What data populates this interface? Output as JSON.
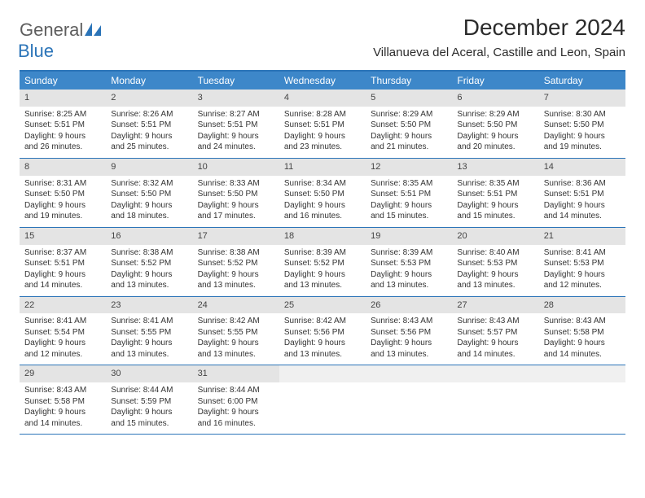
{
  "logo": {
    "general": "General",
    "blue": "Blue"
  },
  "title": "December 2024",
  "location": "Villanueva del Aceral, Castille and Leon, Spain",
  "colors": {
    "header_bg": "#3d87c9",
    "border": "#2b74b8",
    "daynum_bg": "#e4e4e4",
    "text": "#333333",
    "logo_gray": "#5e5e5e",
    "logo_blue": "#2b74b8"
  },
  "weekdays": [
    "Sunday",
    "Monday",
    "Tuesday",
    "Wednesday",
    "Thursday",
    "Friday",
    "Saturday"
  ],
  "weeks": [
    [
      {
        "n": "1",
        "sr": "8:25 AM",
        "ss": "5:51 PM",
        "d1": "9 hours",
        "d2": "and 26 minutes."
      },
      {
        "n": "2",
        "sr": "8:26 AM",
        "ss": "5:51 PM",
        "d1": "9 hours",
        "d2": "and 25 minutes."
      },
      {
        "n": "3",
        "sr": "8:27 AM",
        "ss": "5:51 PM",
        "d1": "9 hours",
        "d2": "and 24 minutes."
      },
      {
        "n": "4",
        "sr": "8:28 AM",
        "ss": "5:51 PM",
        "d1": "9 hours",
        "d2": "and 23 minutes."
      },
      {
        "n": "5",
        "sr": "8:29 AM",
        "ss": "5:50 PM",
        "d1": "9 hours",
        "d2": "and 21 minutes."
      },
      {
        "n": "6",
        "sr": "8:29 AM",
        "ss": "5:50 PM",
        "d1": "9 hours",
        "d2": "and 20 minutes."
      },
      {
        "n": "7",
        "sr": "8:30 AM",
        "ss": "5:50 PM",
        "d1": "9 hours",
        "d2": "and 19 minutes."
      }
    ],
    [
      {
        "n": "8",
        "sr": "8:31 AM",
        "ss": "5:50 PM",
        "d1": "9 hours",
        "d2": "and 19 minutes."
      },
      {
        "n": "9",
        "sr": "8:32 AM",
        "ss": "5:50 PM",
        "d1": "9 hours",
        "d2": "and 18 minutes."
      },
      {
        "n": "10",
        "sr": "8:33 AM",
        "ss": "5:50 PM",
        "d1": "9 hours",
        "d2": "and 17 minutes."
      },
      {
        "n": "11",
        "sr": "8:34 AM",
        "ss": "5:50 PM",
        "d1": "9 hours",
        "d2": "and 16 minutes."
      },
      {
        "n": "12",
        "sr": "8:35 AM",
        "ss": "5:51 PM",
        "d1": "9 hours",
        "d2": "and 15 minutes."
      },
      {
        "n": "13",
        "sr": "8:35 AM",
        "ss": "5:51 PM",
        "d1": "9 hours",
        "d2": "and 15 minutes."
      },
      {
        "n": "14",
        "sr": "8:36 AM",
        "ss": "5:51 PM",
        "d1": "9 hours",
        "d2": "and 14 minutes."
      }
    ],
    [
      {
        "n": "15",
        "sr": "8:37 AM",
        "ss": "5:51 PM",
        "d1": "9 hours",
        "d2": "and 14 minutes."
      },
      {
        "n": "16",
        "sr": "8:38 AM",
        "ss": "5:52 PM",
        "d1": "9 hours",
        "d2": "and 13 minutes."
      },
      {
        "n": "17",
        "sr": "8:38 AM",
        "ss": "5:52 PM",
        "d1": "9 hours",
        "d2": "and 13 minutes."
      },
      {
        "n": "18",
        "sr": "8:39 AM",
        "ss": "5:52 PM",
        "d1": "9 hours",
        "d2": "and 13 minutes."
      },
      {
        "n": "19",
        "sr": "8:39 AM",
        "ss": "5:53 PM",
        "d1": "9 hours",
        "d2": "and 13 minutes."
      },
      {
        "n": "20",
        "sr": "8:40 AM",
        "ss": "5:53 PM",
        "d1": "9 hours",
        "d2": "and 13 minutes."
      },
      {
        "n": "21",
        "sr": "8:41 AM",
        "ss": "5:53 PM",
        "d1": "9 hours",
        "d2": "and 12 minutes."
      }
    ],
    [
      {
        "n": "22",
        "sr": "8:41 AM",
        "ss": "5:54 PM",
        "d1": "9 hours",
        "d2": "and 12 minutes."
      },
      {
        "n": "23",
        "sr": "8:41 AM",
        "ss": "5:55 PM",
        "d1": "9 hours",
        "d2": "and 13 minutes."
      },
      {
        "n": "24",
        "sr": "8:42 AM",
        "ss": "5:55 PM",
        "d1": "9 hours",
        "d2": "and 13 minutes."
      },
      {
        "n": "25",
        "sr": "8:42 AM",
        "ss": "5:56 PM",
        "d1": "9 hours",
        "d2": "and 13 minutes."
      },
      {
        "n": "26",
        "sr": "8:43 AM",
        "ss": "5:56 PM",
        "d1": "9 hours",
        "d2": "and 13 minutes."
      },
      {
        "n": "27",
        "sr": "8:43 AM",
        "ss": "5:57 PM",
        "d1": "9 hours",
        "d2": "and 14 minutes."
      },
      {
        "n": "28",
        "sr": "8:43 AM",
        "ss": "5:58 PM",
        "d1": "9 hours",
        "d2": "and 14 minutes."
      }
    ],
    [
      {
        "n": "29",
        "sr": "8:43 AM",
        "ss": "5:58 PM",
        "d1": "9 hours",
        "d2": "and 14 minutes."
      },
      {
        "n": "30",
        "sr": "8:44 AM",
        "ss": "5:59 PM",
        "d1": "9 hours",
        "d2": "and 15 minutes."
      },
      {
        "n": "31",
        "sr": "8:44 AM",
        "ss": "6:00 PM",
        "d1": "9 hours",
        "d2": "and 16 minutes."
      },
      {
        "blank": true
      },
      {
        "blank": true
      },
      {
        "blank": true
      },
      {
        "blank": true
      }
    ]
  ]
}
